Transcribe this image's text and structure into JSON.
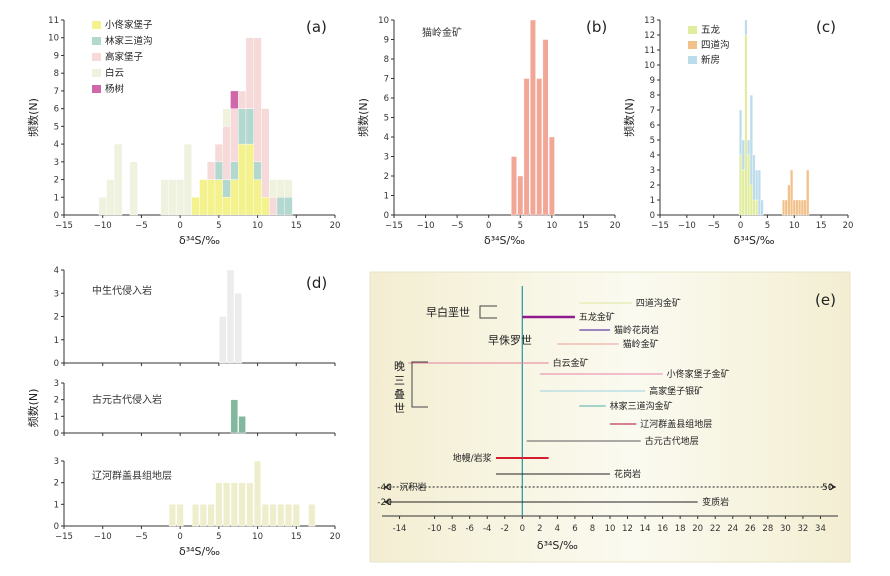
{
  "figure": {
    "xlabel": "δ³⁴S/‰",
    "ylabel": "频数(N)"
  },
  "chart_data": [
    {
      "id": "a",
      "panel_label": "(a)",
      "type": "bar",
      "stacked": true,
      "xlim": [
        -15,
        20
      ],
      "ylim": [
        0,
        11
      ],
      "xticks": [
        -15,
        -10,
        -5,
        0,
        5,
        10,
        15,
        20
      ],
      "yticks": [
        0,
        1,
        2,
        3,
        4,
        5,
        6,
        7,
        8,
        9,
        10,
        11
      ],
      "xlabel": "δ³⁴S/‰",
      "ylabel": "频数(N)",
      "legend": "top-left",
      "bin_width": 1,
      "bins": [
        -10,
        -9,
        -8,
        -7,
        -6,
        -5,
        -4,
        -3,
        -2,
        -1,
        0,
        1,
        2,
        3,
        4,
        5,
        6,
        7,
        8,
        9,
        10,
        11,
        12,
        13,
        14,
        15
      ],
      "series": [
        {
          "name": "小佟家堡子",
          "color": "#f3f28c",
          "values": [
            0,
            0,
            0,
            0,
            0,
            0,
            0,
            0,
            0,
            0,
            0,
            0,
            1,
            2,
            2,
            2,
            1,
            2,
            4,
            4,
            2,
            1,
            0,
            0,
            0,
            0
          ]
        },
        {
          "name": "林家三道沟",
          "color": "#b2d8cf",
          "values": [
            0,
            0,
            0,
            0,
            0,
            0,
            0,
            0,
            0,
            0,
            0,
            0,
            0,
            0,
            0,
            1,
            1,
            1,
            2,
            2,
            1,
            0,
            0,
            1,
            1,
            0
          ]
        },
        {
          "name": "高家堡子",
          "color": "#f6dada",
          "values": [
            0,
            0,
            0,
            0,
            0,
            0,
            0,
            0,
            0,
            0,
            0,
            0,
            0,
            0,
            1,
            1,
            3,
            3,
            1,
            4,
            7,
            5,
            1,
            0,
            0,
            0
          ]
        },
        {
          "name": "白云",
          "color": "#eef2df",
          "values": [
            1,
            2,
            4,
            0,
            3,
            0,
            0,
            0,
            2,
            2,
            2,
            4,
            0,
            0,
            0,
            0,
            1,
            0,
            0,
            0,
            0,
            0,
            1,
            1,
            1,
            0
          ]
        },
        {
          "name": "杨树",
          "color": "#cf67a8",
          "values": [
            0,
            0,
            0,
            0,
            0,
            0,
            0,
            0,
            0,
            0,
            0,
            0,
            0,
            0,
            0,
            0,
            0,
            1,
            0,
            0,
            0,
            0,
            0,
            0,
            0,
            0
          ]
        }
      ]
    },
    {
      "id": "b",
      "panel_label": "(b)",
      "type": "bar",
      "xlim": [
        -15,
        20
      ],
      "ylim": [
        0,
        10
      ],
      "xticks": [
        -15,
        -10,
        -5,
        0,
        5,
        10,
        15,
        20
      ],
      "yticks": [
        0,
        1,
        2,
        3,
        4,
        5,
        6,
        7,
        8,
        9,
        10
      ],
      "xlabel": "δ³⁴S/‰",
      "ylabel": "频数(N)",
      "annotation": "猫岭金矿",
      "bin_width": 0.85,
      "bins": [
        4,
        5,
        6,
        7,
        8,
        9,
        10
      ],
      "series": [
        {
          "name": "猫岭金矿",
          "color": "#f2a796",
          "values": [
            3,
            2,
            7,
            10,
            7,
            9,
            4
          ]
        }
      ]
    },
    {
      "id": "c",
      "panel_label": "(c)",
      "type": "bar",
      "stacked": true,
      "xlim": [
        -15,
        20
      ],
      "ylim": [
        0,
        13
      ],
      "xticks": [
        -15,
        -10,
        -5,
        0,
        5,
        10,
        15,
        20
      ],
      "yticks": [
        0,
        1,
        2,
        3,
        4,
        5,
        6,
        7,
        8,
        9,
        10,
        11,
        12,
        13
      ],
      "xlabel": "δ³⁴S/‰",
      "ylabel": "频数(N)",
      "legend": "top-left",
      "bin_width": 0.5,
      "bins": [
        0,
        0.5,
        1,
        1.5,
        2,
        2.5,
        3,
        3.5,
        4,
        8,
        8.5,
        9,
        9.5,
        10,
        10.5,
        11,
        11.5,
        12,
        12.5
      ],
      "series": [
        {
          "name": "五龙",
          "color": "#e1ec9e",
          "values": [
            4,
            3,
            12,
            4,
            2,
            1,
            1,
            0,
            0,
            0,
            0,
            0,
            0,
            0,
            0,
            0,
            0,
            0,
            0
          ]
        },
        {
          "name": "四道沟",
          "color": "#f2c089",
          "values": [
            0,
            0,
            0,
            0,
            0,
            0,
            0,
            0,
            0,
            1,
            1,
            2,
            3,
            1,
            1,
            1,
            1,
            1,
            3
          ]
        },
        {
          "name": "新房",
          "color": "#bcdcec",
          "values": [
            3,
            2,
            1,
            1,
            6,
            3,
            2,
            3,
            1,
            0,
            0,
            0,
            0,
            0,
            0,
            0,
            0,
            0,
            0
          ]
        }
      ]
    },
    {
      "id": "d",
      "panel_label": "(d)",
      "type": "bar",
      "xlim": [
        -15,
        20
      ],
      "xticks": [
        -15,
        -10,
        -5,
        0,
        5,
        10,
        15,
        20
      ],
      "xlabel": "δ³⁴S/‰",
      "ylabel": "频数(N)",
      "subplots": [
        {
          "annotation": "中生代侵入岩",
          "ylim": [
            0,
            4
          ],
          "yticks": [
            0,
            1,
            2,
            3,
            4
          ],
          "color": "#ececec",
          "bins": [
            5.5,
            6.5,
            7.5
          ],
          "values": [
            2,
            4,
            3
          ],
          "bin_width": 0.9
        },
        {
          "annotation": "古元古代侵入岩",
          "ylim": [
            0,
            3
          ],
          "yticks": [
            0,
            1,
            2,
            3
          ],
          "color": "#83b89f",
          "bins": [
            7,
            8
          ],
          "values": [
            2,
            1
          ],
          "bin_width": 0.9
        },
        {
          "annotation": "辽河群盖县组地层",
          "ylim": [
            0,
            3
          ],
          "yticks": [
            0,
            1,
            2,
            3
          ],
          "color": "#eeeecd",
          "bins": [
            -1,
            0,
            1,
            2,
            3,
            4,
            5,
            6,
            7,
            8,
            9,
            10,
            11,
            12,
            13,
            14,
            15,
            16,
            17
          ],
          "values": [
            1,
            1,
            0,
            1,
            1,
            1,
            2,
            2,
            2,
            2,
            2,
            3,
            1,
            1,
            1,
            1,
            1,
            0,
            1
          ],
          "bin_width": 0.85
        }
      ]
    },
    {
      "id": "e",
      "panel_label": "(e)",
      "type": "range",
      "xlim": [
        -16,
        36
      ],
      "xticks": [
        -14,
        -10,
        -8,
        -6,
        -4,
        -2,
        0,
        2,
        4,
        6,
        8,
        10,
        12,
        14,
        16,
        18,
        20,
        22,
        24,
        26,
        28,
        30,
        32,
        34
      ],
      "xlabel": "δ³⁴S/‰",
      "era_labels": [
        {
          "text": "早白垩世"
        },
        {
          "text": "早侏罗世"
        },
        {
          "text": "晚三叠世"
        }
      ],
      "ranges": [
        {
          "name": "四道沟金矿",
          "min": 6.5,
          "max": 12.5,
          "color": "#dfe8a2",
          "width": 1
        },
        {
          "name": "五龙金矿",
          "min": 0,
          "max": 6,
          "color": "#8f1a8f",
          "width": 2.5
        },
        {
          "name": "猫岭花岗岩",
          "min": 6.5,
          "max": 10,
          "color": "#7d5fb0",
          "width": 1.5
        },
        {
          "name": "猫岭金矿",
          "min": 4,
          "max": 11,
          "color": "#e8a199",
          "width": 1
        },
        {
          "name": "白云金矿",
          "min": -13,
          "max": 3,
          "color": "#e37f99",
          "width": 1
        },
        {
          "name": "小佟家堡子金矿",
          "min": 2,
          "max": 16,
          "color": "#e583a9",
          "width": 1
        },
        {
          "name": "高家堡子银矿",
          "min": 2,
          "max": 14,
          "color": "#9bd3dc",
          "width": 1
        },
        {
          "name": "林家三道沟金矿",
          "min": 6.5,
          "max": 9.5,
          "color": "#4fb0a3",
          "width": 1
        },
        {
          "name": "辽河群盖县组地层",
          "min": 10,
          "max": 13,
          "color": "#c0395a",
          "width": 1.2
        },
        {
          "name": "古元古代地层",
          "min": 0.5,
          "max": 13.5,
          "color": "#5a5a5a",
          "width": 1
        },
        {
          "name": "地幔/岩浆",
          "min": -3,
          "max": 3,
          "color": "#d21e2e",
          "width": 2
        },
        {
          "name": "花岗岩",
          "min": -3,
          "max": 10,
          "color": "#222222",
          "width": 1
        },
        {
          "name": "沉积岩",
          "min": -40,
          "max": 50,
          "color": "#222222",
          "width": 1,
          "dotted_extension": true,
          "min_label": "-40",
          "max_label": "50"
        },
        {
          "name": "变质岩",
          "min": -20,
          "max": 20,
          "color": "#222222",
          "width": 1,
          "min_label": "-20"
        }
      ]
    }
  ]
}
